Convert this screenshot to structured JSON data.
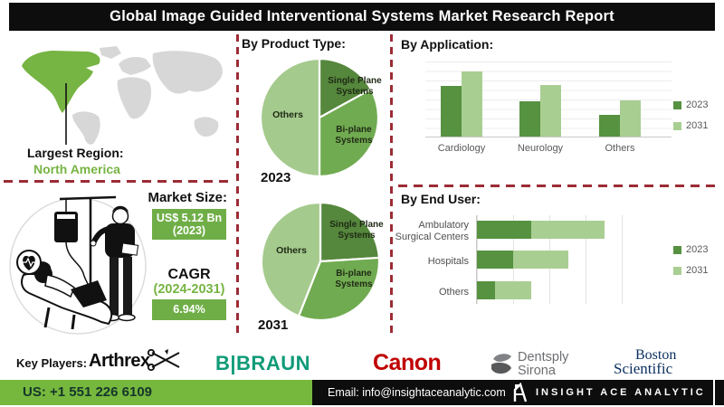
{
  "title": "Global Image Guided Interventional Systems Market Research Report",
  "region": {
    "label": "Largest Region:",
    "value": "North America"
  },
  "market": {
    "size_label": "Market Size:",
    "size_value_line1": "US$ 5.12 Bn",
    "size_value_line2": "(2023)",
    "cagr_label": "CAGR",
    "cagr_period": "(2024-2031)",
    "cagr_value": "6.94%"
  },
  "colors": {
    "accent_green": "#76b443",
    "box_green": "#6fae47",
    "bar_2023": "#569240",
    "bar_2031": "#a9ce92",
    "pie_single_plane": "#55873c",
    "pie_bi_plane": "#71ab51",
    "pie_others": "#a5ca8d",
    "dashed_line": "#9c2c35",
    "map_gray": "#d7d7d7",
    "footer_green": "#76b83e"
  },
  "chart_data": [
    {
      "type": "pie",
      "title": "By Product Type:",
      "year": "2023",
      "labels": [
        "Single Plane Systems",
        "Bi-plane Systems",
        "Others"
      ],
      "values": [
        17,
        33,
        50
      ],
      "colors": [
        "#55873c",
        "#71ab51",
        "#a5ca8d"
      ],
      "start_angle_deg": 0,
      "direction": "clockwise"
    },
    {
      "type": "pie",
      "title": "By Product Type:",
      "year": "2031",
      "labels": [
        "Single Plane Systems",
        "Bi-plane Systems",
        "Others"
      ],
      "values": [
        24,
        32,
        44
      ],
      "colors": [
        "#55873c",
        "#71ab51",
        "#a5ca8d"
      ],
      "start_angle_deg": 0,
      "direction": "clockwise"
    },
    {
      "type": "bar",
      "title": "By Application:",
      "categories": [
        "Cardiology",
        "Neurology",
        "Others"
      ],
      "series": [
        {
          "name": "2023",
          "color": "#569240",
          "values": [
            56,
            39,
            24
          ]
        },
        {
          "name": "2031",
          "color": "#a9ce92",
          "values": [
            72,
            57,
            40
          ]
        }
      ],
      "ylim": [
        0,
        84
      ],
      "grid": true,
      "legend_position": "right"
    },
    {
      "type": "bar-horizontal-stacked",
      "title": "By End User:",
      "categories": [
        "Ambulatory Surgical Centers",
        "Hospitals",
        "Others"
      ],
      "series": [
        {
          "name": "2023",
          "color": "#569240",
          "values": [
            1.5,
            1.0,
            0.5
          ]
        },
        {
          "name": "2031",
          "color": "#a9ce92",
          "values": [
            2.0,
            1.5,
            1.0
          ]
        }
      ],
      "xlim": [
        0,
        4.4
      ],
      "grid": true,
      "legend_position": "right"
    }
  ],
  "key_players": {
    "label": "Key Players:",
    "companies": [
      {
        "name": "Arthrex"
      },
      {
        "name": "B|BRAUN"
      },
      {
        "name": "Canon"
      },
      {
        "name": "Dentsply",
        "name2": "Sirona"
      },
      {
        "name": "Boston",
        "name2": "Scientific"
      }
    ]
  },
  "footer": {
    "phone": "US: +1 551 226 6109",
    "email": "Email: info@insightaceanalytic.com",
    "brand": "INSIGHT ACE ANALYTIC"
  }
}
